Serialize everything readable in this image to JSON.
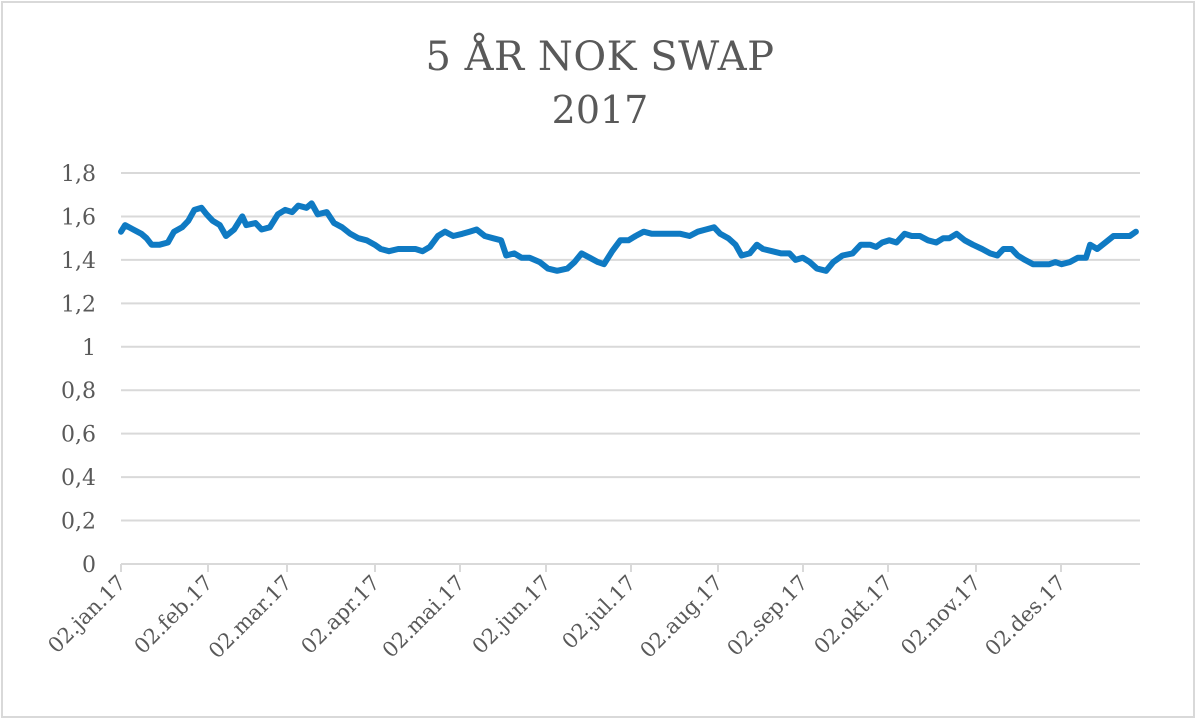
{
  "chart": {
    "title_line1": "5 ÅR NOK SWAP",
    "title_line2": "2017",
    "line_color": "#0f7ac3",
    "grid_color": "#d9d9d9",
    "text_color": "#595959",
    "y_ticks": [
      "1,8",
      "1,6",
      "1,4",
      "1,2",
      "1",
      "0,8",
      "0,6",
      "0,4",
      "0,2",
      "0"
    ],
    "x_ticks": [
      "02.jan.17",
      "02.feb.17",
      "02.mar.17",
      "02.apr.17",
      "02.mai.17",
      "02.jun.17",
      "02.jul.17",
      "02.aug.17",
      "02.sep.17",
      "02.okt.17",
      "02.nov.17",
      "02.des.17"
    ]
  },
  "chart_data": {
    "type": "line",
    "title": "5 ÅR NOK SWAP 2017",
    "xlabel": "",
    "ylabel": "",
    "ylim": [
      0,
      1.8
    ],
    "yticks": [
      0,
      0.2,
      0.4,
      0.6,
      0.8,
      1.0,
      1.2,
      1.4,
      1.6,
      1.8
    ],
    "grid": true,
    "legend": "none",
    "x_tick_labels": [
      "02.jan.17",
      "02.feb.17",
      "02.mar.17",
      "02.apr.17",
      "02.mai.17",
      "02.jun.17",
      "02.jul.17",
      "02.aug.17",
      "02.sep.17",
      "02.okt.17",
      "02.nov.17",
      "02.des.17"
    ],
    "series": [
      {
        "name": "5 år NOK swap",
        "x_frac_of_year": [
          0.0,
          0.004,
          0.012,
          0.02,
          0.025,
          0.03,
          0.038,
          0.046,
          0.052,
          0.06,
          0.066,
          0.072,
          0.079,
          0.084,
          0.09,
          0.097,
          0.103,
          0.111,
          0.119,
          0.123,
          0.132,
          0.138,
          0.146,
          0.154,
          0.161,
          0.168,
          0.174,
          0.182,
          0.187,
          0.193,
          0.202,
          0.209,
          0.217,
          0.225,
          0.233,
          0.241,
          0.249,
          0.255,
          0.263,
          0.272,
          0.28,
          0.289,
          0.296,
          0.303,
          0.311,
          0.318,
          0.326,
          0.335,
          0.342,
          0.349,
          0.357,
          0.365,
          0.373,
          0.378,
          0.386,
          0.393,
          0.401,
          0.411,
          0.419,
          0.428,
          0.438,
          0.445,
          0.452,
          0.46,
          0.468,
          0.474,
          0.482,
          0.49,
          0.498,
          0.505,
          0.513,
          0.521,
          0.529,
          0.539,
          0.549,
          0.558,
          0.566,
          0.574,
          0.582,
          0.588,
          0.596,
          0.603,
          0.609,
          0.617,
          0.624,
          0.63,
          0.639,
          0.648,
          0.656,
          0.662,
          0.669,
          0.676,
          0.683,
          0.692,
          0.699,
          0.708,
          0.718,
          0.726,
          0.735,
          0.741,
          0.747,
          0.754,
          0.761,
          0.769,
          0.776,
          0.784,
          0.792,
          0.8,
          0.807,
          0.813,
          0.82,
          0.828,
          0.836,
          0.845,
          0.853,
          0.86,
          0.866,
          0.874,
          0.88,
          0.887,
          0.895,
          0.903,
          0.911,
          0.917,
          0.923,
          0.931,
          0.939,
          0.947,
          0.951,
          0.958,
          0.966,
          0.974,
          0.982,
          0.99,
          0.996
        ],
        "values": [
          1.53,
          1.56,
          1.54,
          1.52,
          1.5,
          1.47,
          1.47,
          1.48,
          1.53,
          1.55,
          1.58,
          1.63,
          1.64,
          1.61,
          1.58,
          1.56,
          1.51,
          1.54,
          1.6,
          1.56,
          1.57,
          1.54,
          1.55,
          1.61,
          1.63,
          1.62,
          1.65,
          1.64,
          1.66,
          1.61,
          1.62,
          1.57,
          1.55,
          1.52,
          1.5,
          1.49,
          1.47,
          1.45,
          1.44,
          1.45,
          1.45,
          1.45,
          1.44,
          1.46,
          1.51,
          1.53,
          1.51,
          1.52,
          1.53,
          1.54,
          1.51,
          1.5,
          1.49,
          1.42,
          1.43,
          1.41,
          1.41,
          1.39,
          1.36,
          1.35,
          1.36,
          1.39,
          1.43,
          1.41,
          1.39,
          1.38,
          1.44,
          1.49,
          1.49,
          1.51,
          1.53,
          1.52,
          1.52,
          1.52,
          1.52,
          1.51,
          1.53,
          1.54,
          1.55,
          1.52,
          1.5,
          1.47,
          1.42,
          1.43,
          1.47,
          1.45,
          1.44,
          1.43,
          1.43,
          1.4,
          1.41,
          1.39,
          1.36,
          1.35,
          1.39,
          1.42,
          1.43,
          1.47,
          1.47,
          1.46,
          1.48,
          1.49,
          1.48,
          1.52,
          1.51,
          1.51,
          1.49,
          1.48,
          1.5,
          1.5,
          1.52,
          1.49,
          1.47,
          1.45,
          1.43,
          1.42,
          1.45,
          1.45,
          1.42,
          1.4,
          1.38,
          1.38,
          1.38,
          1.39,
          1.38,
          1.39,
          1.41,
          1.41,
          1.47,
          1.45,
          1.48,
          1.51,
          1.51,
          1.51,
          1.53
        ]
      }
    ]
  }
}
